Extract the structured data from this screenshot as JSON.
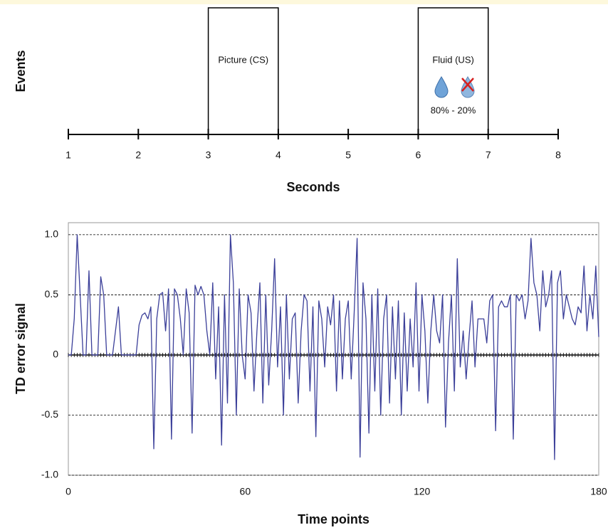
{
  "chart_data": [
    {
      "type": "timeline",
      "ylabel": "Events",
      "xlabel": "Seconds",
      "xlim": [
        1,
        8
      ],
      "xticks": [
        1,
        2,
        3,
        4,
        5,
        6,
        7,
        8
      ],
      "events": [
        {
          "label": "Picture (CS)",
          "start": 3,
          "end": 4
        },
        {
          "label": "Fluid (US)",
          "start": 6,
          "end": 7,
          "annotation": "80% - 20%"
        }
      ]
    },
    {
      "type": "line",
      "ylabel": "TD error signal",
      "xlabel": "Time points",
      "xlim": [
        0,
        180
      ],
      "ylim": [
        -1.0,
        1.1
      ],
      "xticks": [
        0,
        60,
        120,
        180
      ],
      "yticks": [
        {
          "value": -1.0,
          "label": "-1.0"
        },
        {
          "value": -0.5,
          "label": "-0.5"
        },
        0,
        0.5,
        {
          "value": 1.0,
          "label": "1.0"
        }
      ],
      "grid": true,
      "x": [
        0,
        1,
        2,
        3,
        4,
        5,
        6,
        7,
        8,
        9,
        10,
        11,
        12,
        13,
        14,
        15,
        16,
        17,
        18,
        19,
        20,
        21,
        22,
        23,
        24,
        25,
        26,
        27,
        28,
        29,
        30,
        31,
        32,
        33,
        34,
        35,
        36,
        37,
        38,
        39,
        40,
        41,
        42,
        43,
        44,
        45,
        46,
        47,
        48,
        49,
        50,
        51,
        52,
        53,
        54,
        55,
        56,
        57,
        58,
        59,
        60,
        61,
        62,
        63,
        64,
        65,
        66,
        67,
        68,
        69,
        70,
        71,
        72,
        73,
        74,
        75,
        76,
        77,
        78,
        79,
        80,
        81,
        82,
        83,
        84,
        85,
        86,
        87,
        88,
        89,
        90,
        91,
        92,
        93,
        94,
        95,
        96,
        97,
        98,
        99,
        100,
        101,
        102,
        103,
        104,
        105,
        106,
        107,
        108,
        109,
        110,
        111,
        112,
        113,
        114,
        115,
        116,
        117,
        118,
        119,
        120,
        121,
        122,
        123,
        124,
        125,
        126,
        127,
        128,
        129,
        130,
        131,
        132,
        133,
        134,
        135,
        136,
        137,
        138,
        139,
        140,
        141,
        142,
        143,
        144,
        145,
        146,
        147,
        148,
        149,
        150,
        151,
        152,
        153,
        154,
        155,
        156,
        157,
        158,
        159,
        160,
        161,
        162,
        163,
        164,
        165,
        166,
        167,
        168,
        169,
        170,
        171,
        172,
        173,
        174,
        175,
        176,
        177,
        178,
        179,
        180
      ],
      "series": [
        {
          "color": "#3b3f99",
          "values": [
            0,
            0,
            0.3,
            1.0,
            0.5,
            0,
            0,
            0.7,
            0,
            0,
            0,
            0.65,
            0.5,
            0,
            0,
            0,
            0.2,
            0.4,
            0,
            0,
            0,
            0,
            0,
            0,
            0.25,
            0.33,
            0.35,
            0.3,
            0.4,
            -0.78,
            0.3,
            0.5,
            0.52,
            0.2,
            0.55,
            -0.7,
            0.55,
            0.5,
            0.3,
            0,
            0.55,
            0.35,
            -0.65,
            0.58,
            0.5,
            0.57,
            0.5,
            0.2,
            0,
            0.6,
            -0.2,
            0.4,
            -0.75,
            0.5,
            -0.4,
            1.0,
            0.6,
            -0.5,
            0.55,
            0,
            -0.2,
            0.5,
            0.35,
            -0.3,
            0.2,
            0.6,
            -0.4,
            0.5,
            -0.25,
            0.2,
            0.8,
            -0.1,
            0.4,
            -0.5,
            0.5,
            -0.2,
            0.3,
            0.35,
            -0.4,
            0.2,
            0.5,
            0.45,
            -0.3,
            0.4,
            -0.68,
            0.45,
            0.3,
            -0.1,
            0.4,
            0.25,
            0.5,
            -0.3,
            0.45,
            -0.2,
            0.3,
            0.45,
            -0.2,
            0.35,
            0.97,
            -0.85,
            0.6,
            0.3,
            -0.65,
            0.5,
            -0.3,
            0.55,
            -0.5,
            0.3,
            0.5,
            -0.4,
            0.4,
            -0.2,
            0.45,
            -0.5,
            0.35,
            -0.3,
            0.3,
            -0.1,
            0.6,
            -0.3,
            0.5,
            0.2,
            -0.4,
            0.2,
            0.5,
            0.2,
            0.1,
            0.5,
            -0.6,
            0.1,
            0.5,
            -0.3,
            0.8,
            -0.1,
            0.2,
            -0.2,
            0.15,
            0.45,
            -0.1,
            0.3,
            0.3,
            0.3,
            0.1,
            0.45,
            0.5,
            -0.63,
            0.4,
            0.45,
            0.4,
            0.4,
            0.5,
            -0.7,
            0.5,
            0.45,
            0.5,
            0.3,
            0.45,
            0.97,
            0.6,
            0.5,
            0.2,
            0.7,
            0.4,
            0.5,
            0.7,
            -0.87,
            0.6,
            0.7,
            0.3,
            0.5,
            0.4,
            0.3,
            0.25,
            0.4,
            0.35,
            0.74,
            0.2,
            0.5,
            0.3,
            0.74,
            0.15
          ]
        }
      ]
    }
  ]
}
